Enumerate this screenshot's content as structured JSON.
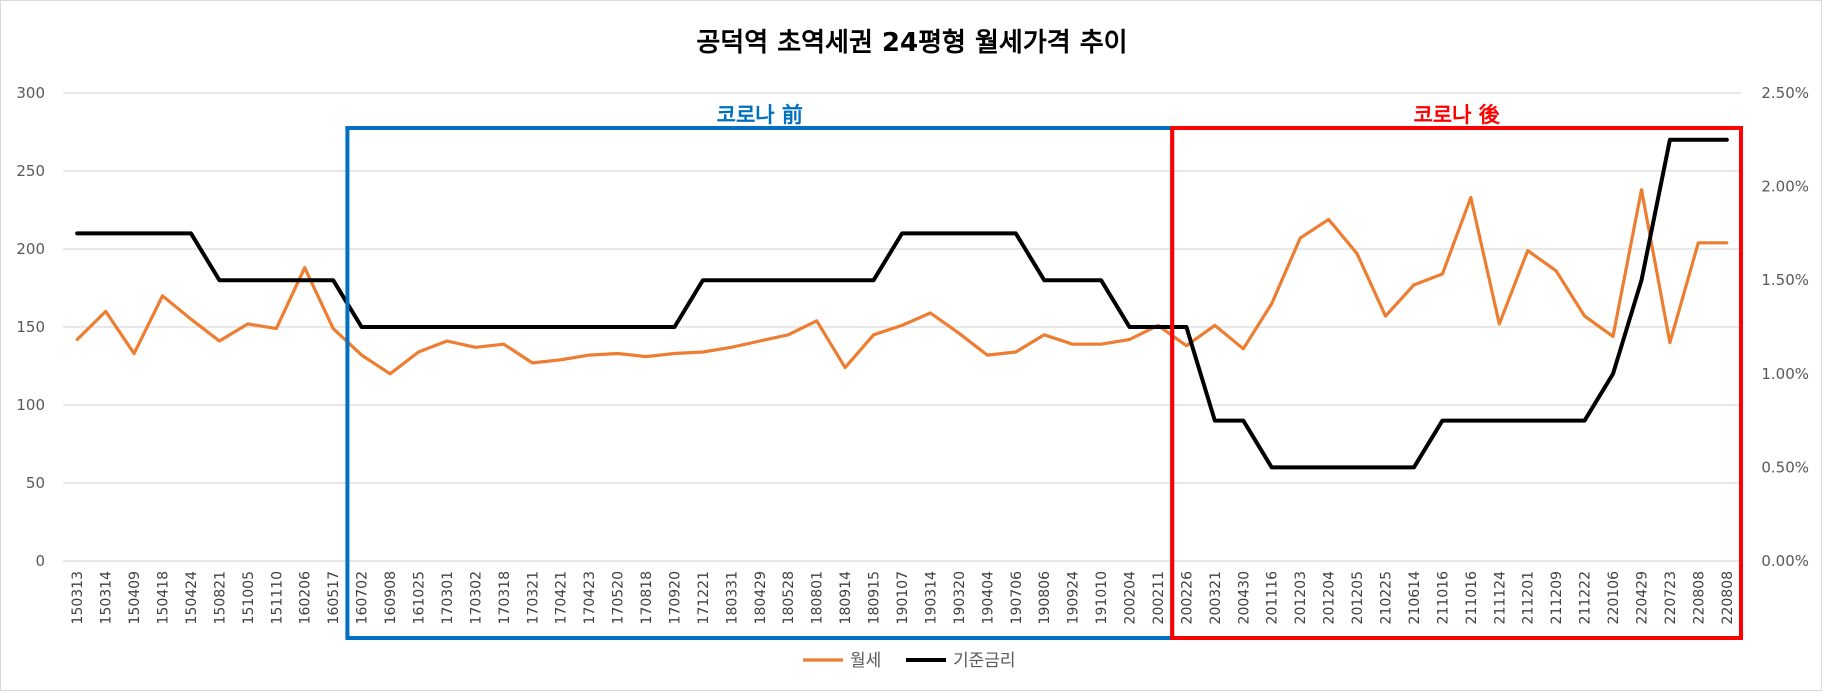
{
  "chart_data": {
    "type": "line",
    "title": "공덕역 초역세권 24평형 월세가격 추이",
    "categories": [
      "150313",
      "150314",
      "150409",
      "150418",
      "150424",
      "150821",
      "151005",
      "151110",
      "160206",
      "160517",
      "160702",
      "160908",
      "161025",
      "170301",
      "170302",
      "170318",
      "170321",
      "170421",
      "170423",
      "170520",
      "170818",
      "170920",
      "171221",
      "180331",
      "180429",
      "180528",
      "180801",
      "180914",
      "180915",
      "190107",
      "190314",
      "190320",
      "190404",
      "190706",
      "190806",
      "190924",
      "191010",
      "200204",
      "200211",
      "200226",
      "200321",
      "200430",
      "201116",
      "201203",
      "201204",
      "201205",
      "210225",
      "210614",
      "211016",
      "211016",
      "211124",
      "211201",
      "211209",
      "211222",
      "220106",
      "220429",
      "220723",
      "220808",
      "220808"
    ],
    "series": [
      {
        "name": "월세",
        "axis": "left",
        "color": "#ED7D31",
        "values": [
          142,
          160,
          133,
          170,
          155,
          141,
          152,
          149,
          188,
          149,
          132,
          120,
          134,
          141,
          137,
          139,
          127,
          129,
          132,
          133,
          131,
          133,
          134,
          137,
          141,
          145,
          154,
          124,
          145,
          151,
          159,
          146,
          132,
          134,
          145,
          139,
          139,
          142,
          151,
          138,
          151,
          136,
          165,
          207,
          219,
          197,
          157,
          177,
          184,
          233,
          152,
          199,
          186,
          157,
          144,
          238,
          140,
          204,
          204
        ]
      },
      {
        "name": "기준금리",
        "axis": "right",
        "color": "#000000",
        "values": [
          1.75,
          1.75,
          1.75,
          1.75,
          1.75,
          1.5,
          1.5,
          1.5,
          1.5,
          1.5,
          1.25,
          1.25,
          1.25,
          1.25,
          1.25,
          1.25,
          1.25,
          1.25,
          1.25,
          1.25,
          1.25,
          1.25,
          1.5,
          1.5,
          1.5,
          1.5,
          1.5,
          1.5,
          1.5,
          1.75,
          1.75,
          1.75,
          1.75,
          1.75,
          1.5,
          1.5,
          1.5,
          1.25,
          1.25,
          1.25,
          0.75,
          0.75,
          0.5,
          0.5,
          0.5,
          0.5,
          0.5,
          0.5,
          0.75,
          0.75,
          0.75,
          0.75,
          0.75,
          0.75,
          1.0,
          1.5,
          2.25,
          2.25,
          2.25
        ]
      }
    ],
    "y_left": {
      "min": 0,
      "max": 300,
      "ticks": [
        0,
        50,
        100,
        150,
        200,
        250,
        300
      ],
      "tick_labels": [
        "0",
        "50",
        "100",
        "150",
        "200",
        "250",
        "300"
      ]
    },
    "y_right": {
      "min": 0,
      "max": 2.5,
      "ticks": [
        0,
        0.5,
        1.0,
        1.5,
        2.0,
        2.5
      ],
      "tick_labels": [
        "0.00%",
        "0.50%",
        "1.00%",
        "1.50%",
        "2.00%",
        "2.50%"
      ]
    },
    "grid": true,
    "legend_position": "bottom",
    "annotations": [
      {
        "label": "코로나 前",
        "color": "#0070C0",
        "from_index": 10,
        "to_index": 38
      },
      {
        "label": "코로나 後",
        "color": "#FF0000",
        "from_index": 39,
        "to_index": 58
      }
    ]
  }
}
